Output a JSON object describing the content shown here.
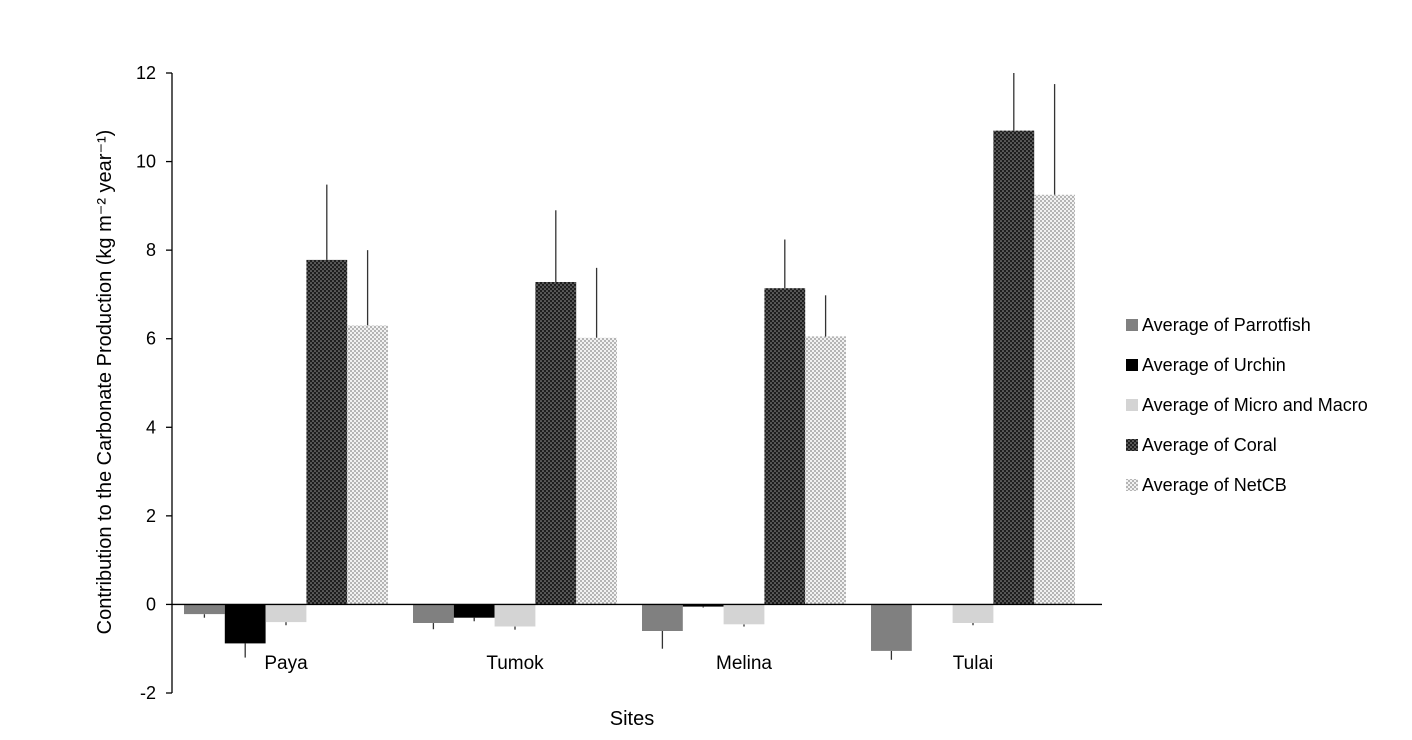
{
  "chart_data": {
    "type": "bar",
    "title": "",
    "xlabel": "Sites",
    "ylabel": "Contribution to the Carbonate Production (kg m⁻² year⁻¹)",
    "ylim": [
      -2,
      12
    ],
    "yticks": [
      "-2",
      "0",
      "2",
      "4",
      "6",
      "8",
      "10",
      "12"
    ],
    "grid": false,
    "legend_position": "right",
    "categories": [
      "Paya",
      "Tumok",
      "Melina",
      "Tulai"
    ],
    "series": [
      {
        "name": "Average of Parrotfish",
        "pattern": "solid",
        "color": "#808080",
        "values": [
          -0.22,
          -0.42,
          -0.6,
          -1.05
        ],
        "error": [
          0.08,
          0.14,
          0.4,
          0.2
        ]
      },
      {
        "name": "Average of Urchin",
        "pattern": "solid",
        "color": "#000000",
        "values": [
          -0.88,
          -0.3,
          -0.05,
          0
        ],
        "error": [
          0.32,
          0.08,
          0.02,
          0
        ]
      },
      {
        "name": "Average of Micro and Macro",
        "pattern": "solid",
        "color": "#d4d4d4",
        "values": [
          -0.4,
          -0.5,
          -0.45,
          -0.42
        ],
        "error": [
          0.07,
          0.07,
          0.05,
          0.05
        ]
      },
      {
        "name": "Average of Coral",
        "pattern": "dark-dots",
        "color": "#1a1a1a",
        "values": [
          7.78,
          7.28,
          7.14,
          10.7
        ],
        "error": [
          1.7,
          1.62,
          1.1,
          1.3
        ]
      },
      {
        "name": "Average of NetCB",
        "pattern": "light-dots",
        "color": "#cfcfcf",
        "values": [
          6.3,
          6.02,
          6.05,
          9.25
        ],
        "error": [
          1.7,
          1.58,
          0.93,
          2.5
        ]
      }
    ]
  }
}
